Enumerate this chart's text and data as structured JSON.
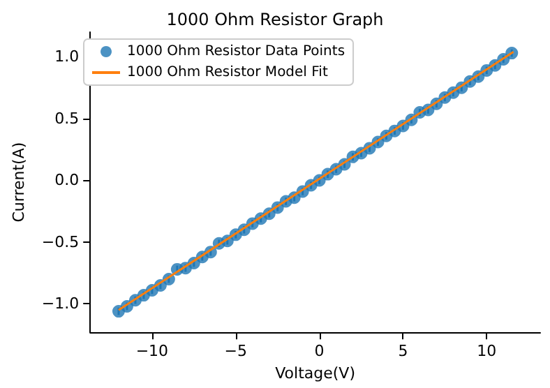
{
  "chart_data": {
    "type": "scatter",
    "title": "1000 Ohm Resistor Graph",
    "xlabel": "Voltage(V)",
    "ylabel": "Current(A)",
    "xlim": [
      -13.7,
      13.2
    ],
    "xticks": [
      {
        "value": -10,
        "label": "−10"
      },
      {
        "value": -5,
        "label": "−5"
      },
      0,
      5,
      10
    ],
    "ylim": [
      -1.23,
      1.2
    ],
    "yticks": [
      {
        "value": -1,
        "label": "−1.0"
      },
      {
        "value": -0.5,
        "label": "−0.5"
      },
      {
        "value": 0,
        "label": "0.0"
      },
      {
        "value": 0.5,
        "label": "0.5"
      },
      {
        "value": 1,
        "label": "1.0"
      }
    ],
    "grid": false,
    "legend": "top left",
    "marker": "circle",
    "series": [
      {
        "name": "1000 Ohm Resistor Data Points",
        "color": "#1f77b4",
        "x": [
          -12,
          -11.5,
          -11,
          -10.5,
          -10,
          -9.5,
          -9,
          -8.5,
          -8,
          -7.5,
          -7,
          -6.5,
          -6,
          -5.5,
          -5,
          -4.5,
          -4,
          -3.5,
          -3,
          -2.5,
          -2,
          -1.5,
          -1,
          -0.5,
          0,
          0.5,
          1,
          1.5,
          2,
          2.5,
          3,
          3.5,
          4,
          4.5,
          5,
          5.5,
          6,
          6.5,
          7,
          7.5,
          8,
          8.5,
          9,
          9.5,
          10,
          10.5,
          11,
          11.5
        ],
        "values": [
          -1.06,
          -1.02,
          -0.97,
          -0.93,
          -0.89,
          -0.85,
          -0.8,
          -0.72,
          -0.71,
          -0.67,
          -0.62,
          -0.58,
          -0.51,
          -0.49,
          -0.44,
          -0.4,
          -0.35,
          -0.31,
          -0.27,
          -0.22,
          -0.17,
          -0.14,
          -0.09,
          -0.04,
          0,
          0.05,
          0.09,
          0.13,
          0.19,
          0.22,
          0.26,
          0.31,
          0.36,
          0.4,
          0.44,
          0.49,
          0.55,
          0.57,
          0.62,
          0.67,
          0.71,
          0.75,
          0.8,
          0.84,
          0.89,
          0.93,
          0.98,
          1.03
        ],
        "errors": [
          0.03,
          0.03,
          0.03,
          0.03,
          0.03,
          0.03,
          0.03,
          0.03,
          0.03,
          0.03,
          0.03,
          0.03,
          0.03,
          0.03,
          0.03,
          0.03,
          0.03,
          0.03,
          0.03,
          0.03,
          0.03,
          0.03,
          0.03,
          0.03,
          0.03,
          0.03,
          0.03,
          0.03,
          0.03,
          0.03,
          0.03,
          0.03,
          0.03,
          0.03,
          0.03,
          0.03,
          0.03,
          0.03,
          0.03,
          0.03,
          0.03,
          0.03,
          0.03,
          0.03,
          0.03,
          0.03,
          0.03,
          0.03
        ]
      },
      {
        "name": "1000 Ohm Resistor Model Fit",
        "type": "line",
        "color": "#ff7f0e",
        "marker": "none",
        "line_style": "solid",
        "x": [
          -12,
          11.6
        ],
        "values": [
          -1.05,
          1.04
        ]
      }
    ]
  }
}
